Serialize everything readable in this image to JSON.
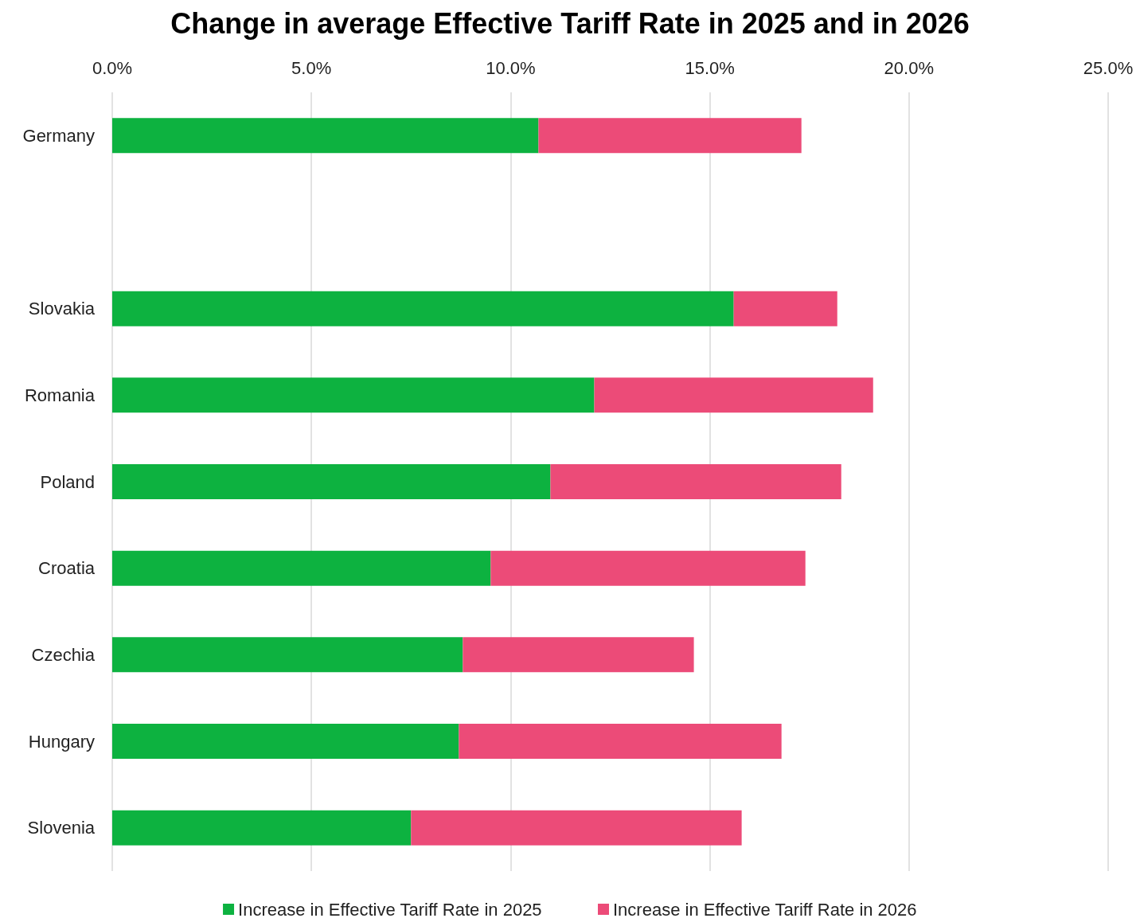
{
  "chart_data": {
    "type": "bar",
    "orientation": "horizontal",
    "stacked": true,
    "title": "Change in average Effective Tariff Rate in 2025 and in 2026",
    "categories": [
      "Germany",
      null,
      "Slovakia",
      "Romania",
      "Poland",
      "Croatia",
      "Czechia",
      "Hungary",
      "Slovenia"
    ],
    "series": [
      {
        "name": "Increase in Effective Tariff Rate in 2025",
        "color": "#0db240",
        "values": [
          10.7,
          null,
          15.6,
          12.1,
          11.0,
          9.5,
          8.8,
          8.7,
          7.5
        ]
      },
      {
        "name": "Increase in Effective Tariff Rate in 2026",
        "color": "#ec4b78",
        "values": [
          6.6,
          null,
          2.6,
          7.0,
          7.3,
          7.9,
          5.8,
          8.1,
          8.3
        ]
      }
    ],
    "xlim": [
      0,
      25
    ],
    "xticks": [
      {
        "value": 0,
        "label": "0.0%"
      },
      {
        "value": 5,
        "label": "5.0%"
      },
      {
        "value": 10,
        "label": "10.0%"
      },
      {
        "value": 15,
        "label": "15.0%"
      },
      {
        "value": 20,
        "label": "20.0%"
      },
      {
        "value": 25,
        "label": "25.0%"
      }
    ],
    "grid": "x",
    "legend": "bottom"
  }
}
